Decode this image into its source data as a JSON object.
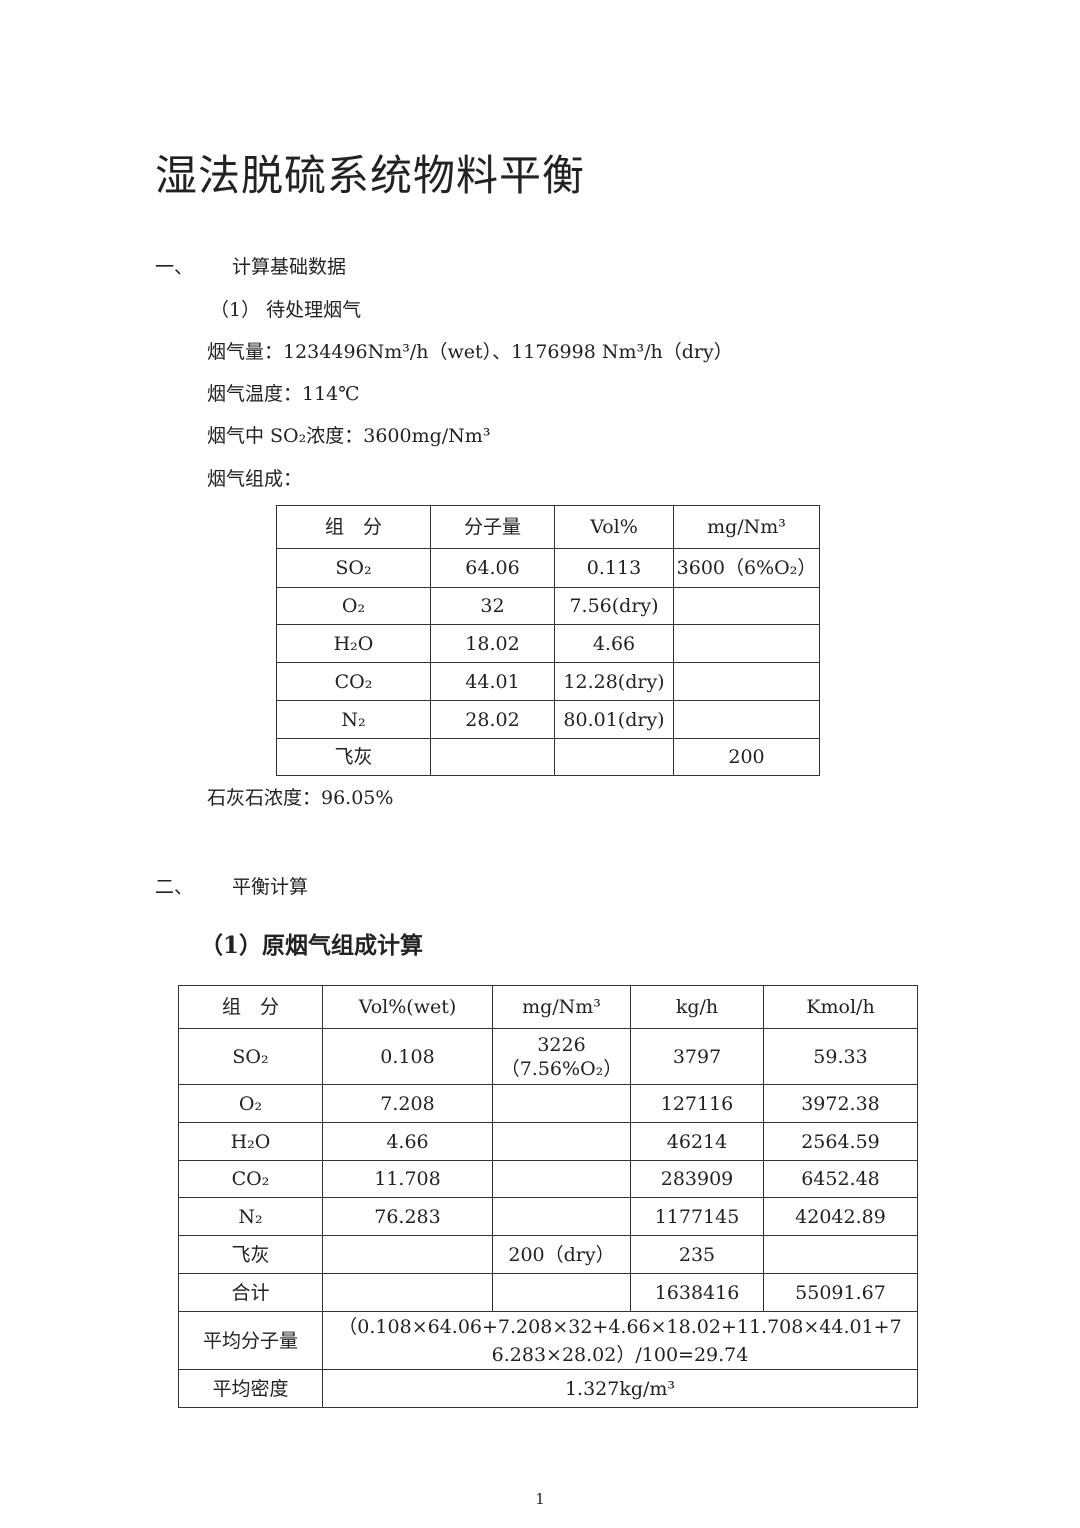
{
  "title": "湿法脱硫系统物料平衡",
  "section1": {
    "num": "一、",
    "label": "计算基础数据",
    "sub": "（1）  待处理烟气",
    "lines": [
      "烟气量：1234496Nm³/h（wet）、1176998 Nm³/h（dry）",
      "烟气温度：114℃",
      "烟气中 SO₂浓度：3600mg/Nm³",
      "烟气组成："
    ],
    "table": {
      "headers": [
        "组　分",
        "分子量",
        "Vol%",
        "mg/Nm³"
      ],
      "rows": [
        [
          "SO₂",
          "64.06",
          "0.113",
          "3600（6%O₂）"
        ],
        [
          "O₂",
          "32",
          "7.56(dry)",
          ""
        ],
        [
          "H₂O",
          "18.02",
          "4.66",
          ""
        ],
        [
          "CO₂",
          "44.01",
          "12.28(dry)",
          ""
        ],
        [
          "N₂",
          "28.02",
          "80.01(dry)",
          ""
        ],
        [
          "飞灰",
          "",
          "",
          "200"
        ]
      ]
    },
    "limestone": "石灰石浓度：96.05%"
  },
  "section2": {
    "num": "二、",
    "label": "平衡计算",
    "sub": "（1）原烟气组成计算",
    "table": {
      "headers": [
        "组　分",
        "Vol%(wet)",
        "mg/Nm³",
        "kg/h",
        "Kmol/h"
      ],
      "rows": [
        [
          "SO₂",
          "0.108",
          "3226\n（7.56%O₂）",
          "3797",
          "59.33"
        ],
        [
          "O₂",
          "7.208",
          "",
          "127116",
          "3972.38"
        ],
        [
          "H₂O",
          "4.66",
          "",
          "46214",
          "2564.59"
        ],
        [
          "CO₂",
          "11.708",
          "",
          "283909",
          "6452.48"
        ],
        [
          "N₂",
          "76.283",
          "",
          "1177145",
          "42042.89"
        ],
        [
          "飞灰",
          "",
          "200（dry）",
          "235",
          ""
        ],
        [
          "合计",
          "",
          "",
          "1638416",
          "55091.67"
        ]
      ],
      "avg_mw_label": "平均分子量",
      "avg_mw_value": "（0.108×64.06+7.208×32+4.66×18.02+11.708×44.01+76.283×28.02）/100=29.74",
      "avg_density_label": "平均密度",
      "avg_density_value": "1.327kg/m³"
    }
  },
  "page_number": "1"
}
